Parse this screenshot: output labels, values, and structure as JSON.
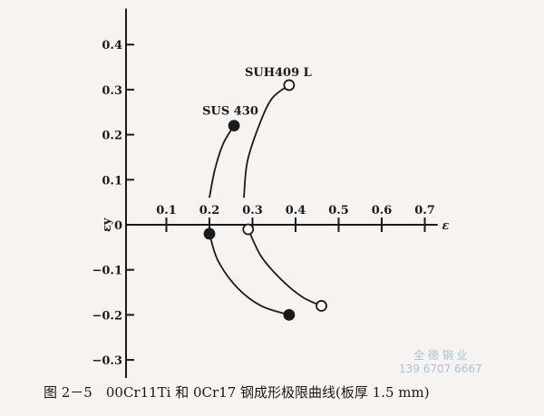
{
  "chart_data": {
    "type": "line",
    "title": "",
    "xlabel": "ε",
    "ylabel": "εy",
    "xlim": [
      0,
      0.75
    ],
    "ylim": [
      -0.32,
      0.42
    ],
    "x_ticks": [
      "0.1",
      "0.2",
      "0.3",
      "0.4",
      "0.5",
      "0.6",
      "0.7"
    ],
    "y_ticks": [
      "0.4",
      "0.3",
      "0.2",
      "0.1",
      "0",
      "-0.1",
      "-0.2",
      "-0.3"
    ],
    "grid": false,
    "series": [
      {
        "name": "SUS 430",
        "marker": "filled-circle",
        "color": "#1a1a1a",
        "segments": [
          [
            [
              0.2,
              0.06
            ],
            [
              0.212,
              0.12
            ],
            [
              0.232,
              0.18
            ],
            [
              0.257,
              0.22
            ]
          ],
          [
            [
              0.2,
              -0.02
            ],
            [
              0.22,
              -0.08
            ],
            [
              0.265,
              -0.14
            ],
            [
              0.32,
              -0.18
            ],
            [
              0.385,
              -0.2
            ]
          ]
        ],
        "endpoints": [
          [
            0.257,
            0.22
          ],
          [
            0.2,
            -0.02
          ],
          [
            0.385,
            -0.2
          ]
        ]
      },
      {
        "name": "SUH409 L",
        "marker": "open-circle",
        "color": "#1a1a1a",
        "segments": [
          [
            [
              0.28,
              0.06
            ],
            [
              0.288,
              0.14
            ],
            [
              0.315,
              0.22
            ],
            [
              0.345,
              0.28
            ],
            [
              0.385,
              0.31
            ]
          ],
          [
            [
              0.29,
              -0.01
            ],
            [
              0.32,
              -0.07
            ],
            [
              0.365,
              -0.12
            ],
            [
              0.415,
              -0.16
            ],
            [
              0.46,
              -0.18
            ]
          ]
        ],
        "endpoints": [
          [
            0.385,
            0.31
          ],
          [
            0.29,
            -0.01
          ],
          [
            0.46,
            -0.18
          ]
        ]
      }
    ]
  },
  "caption": "图 2－5　00Cr11Ti 和 0Cr17 钢成形极限曲线(板厚 1.5 mm)",
  "watermark": {
    "line1": "全 德 钢 业",
    "line2": "139 6707 6667"
  }
}
